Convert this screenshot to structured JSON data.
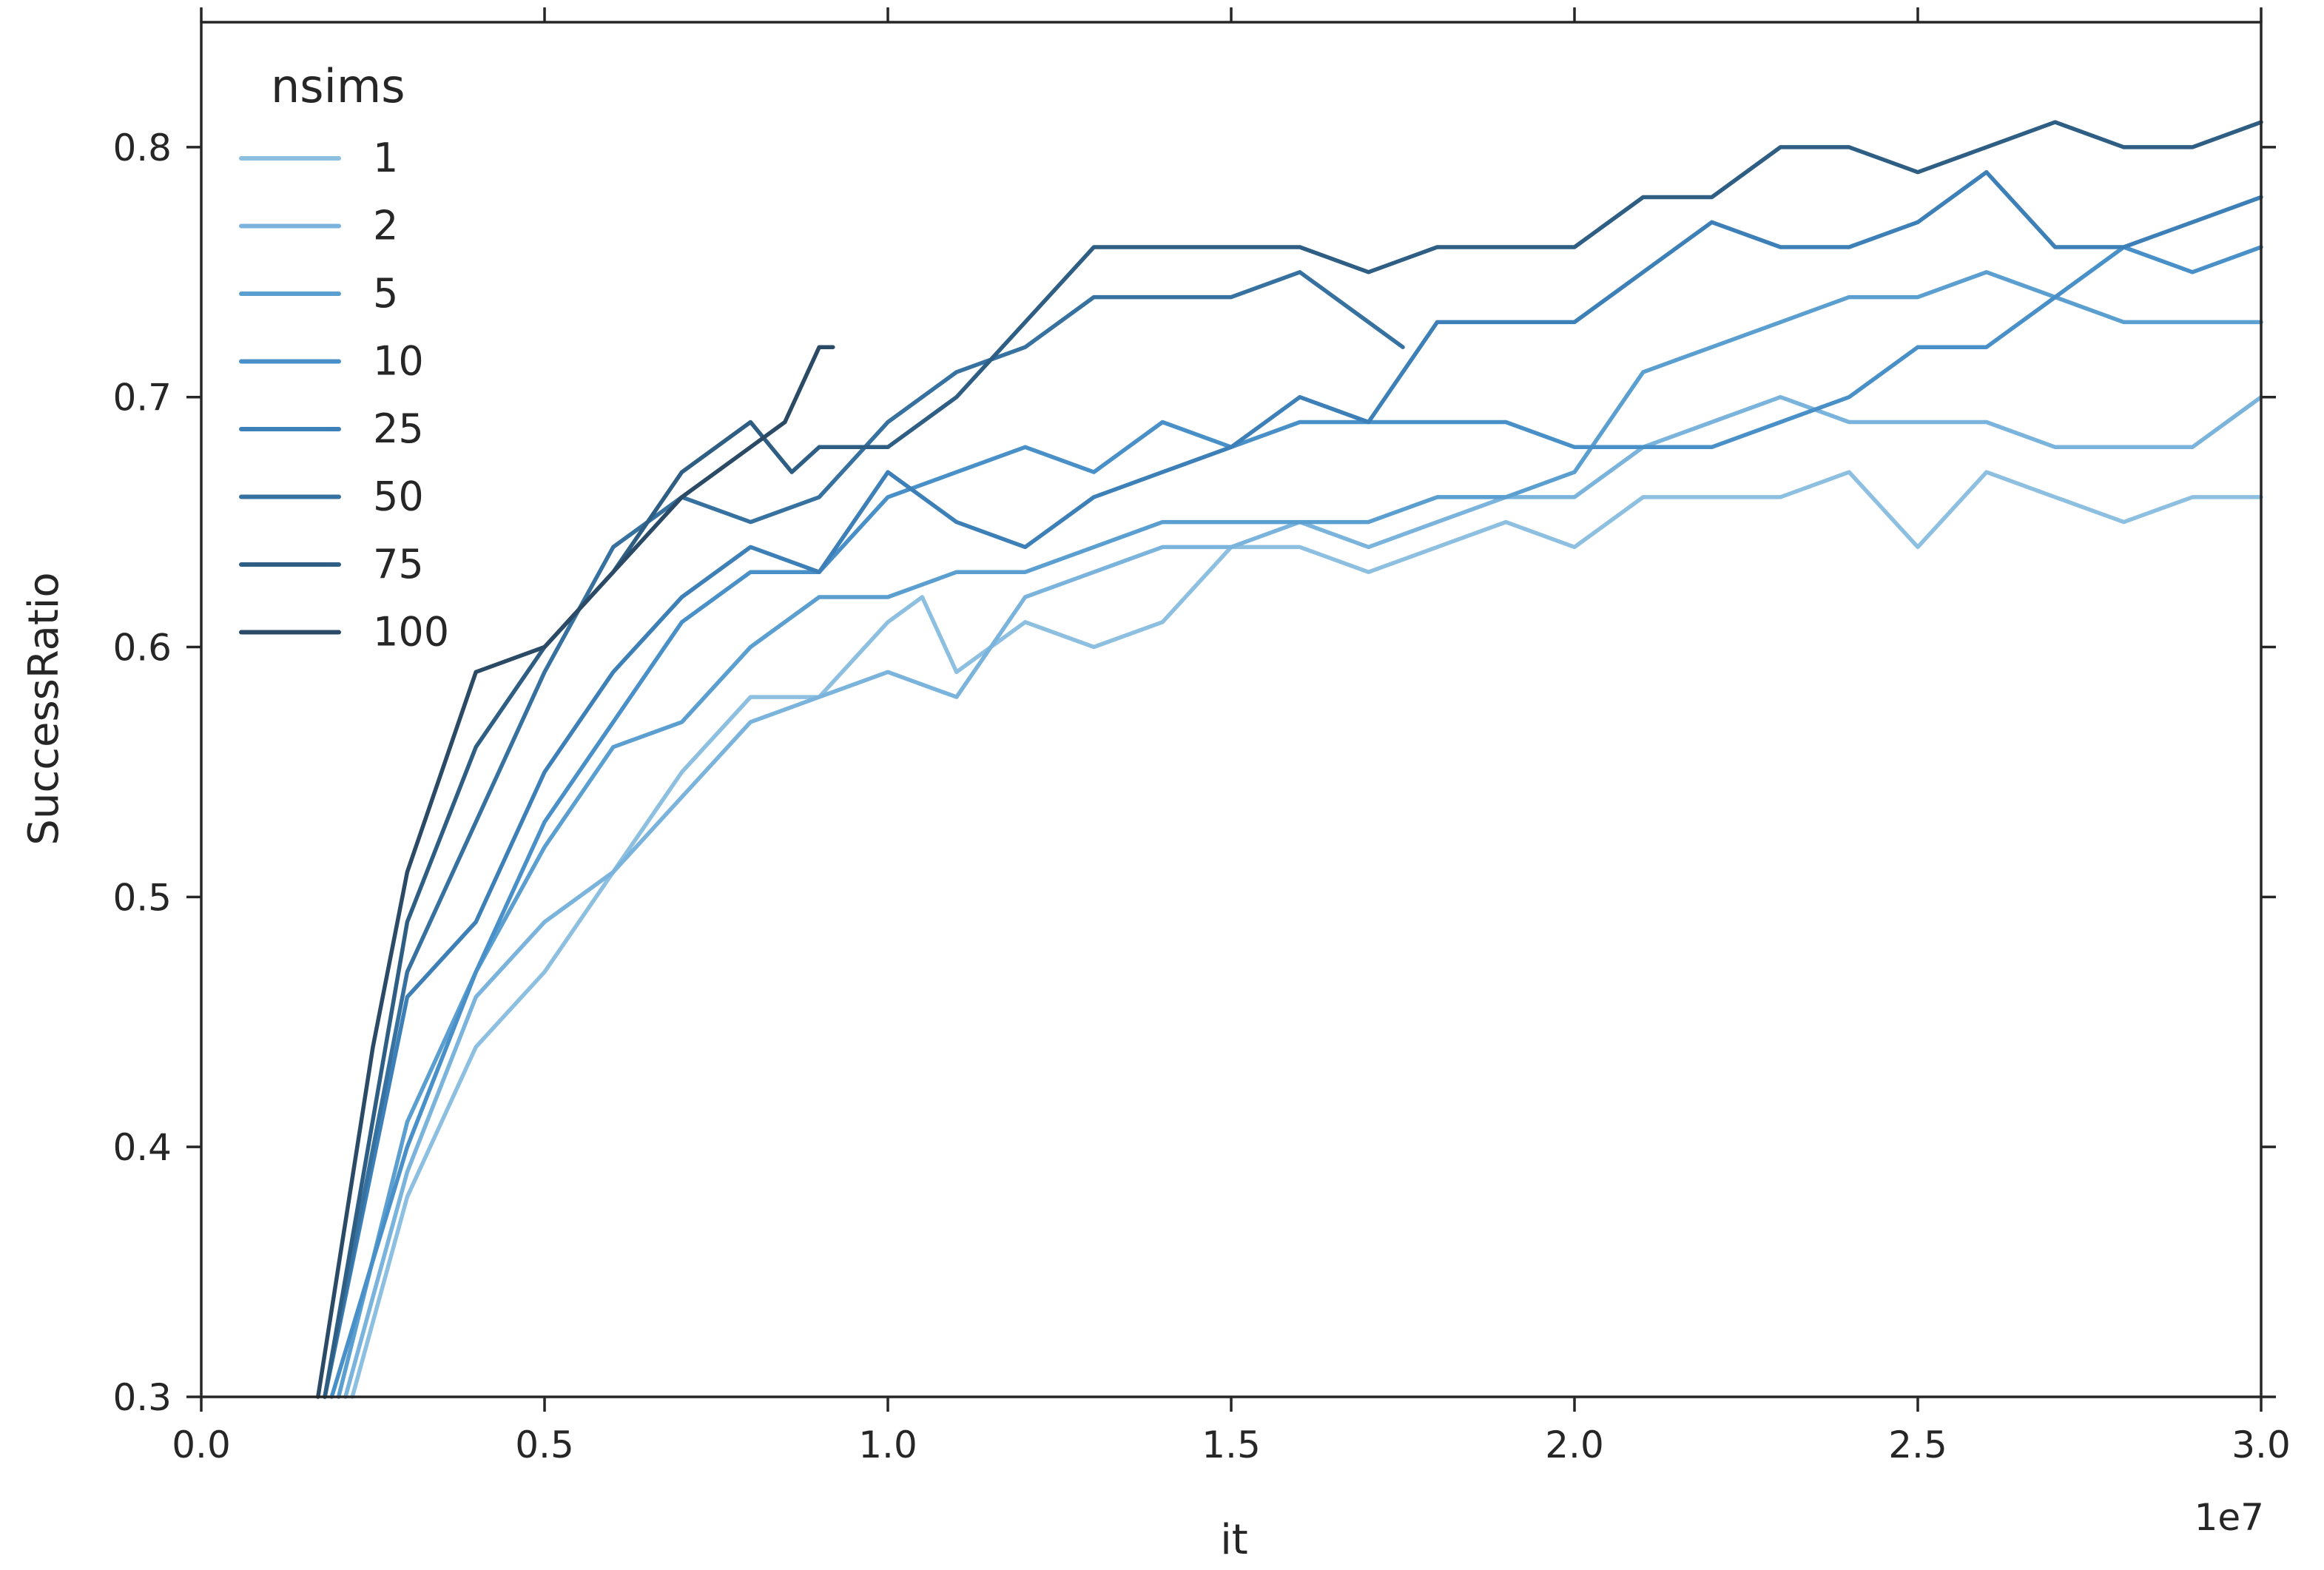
{
  "chart_data": {
    "type": "line",
    "xlabel": "it",
    "ylabel": "SuccessRatio",
    "x_offset_label": "1e7",
    "xlim": [
      0,
      30000000
    ],
    "ylim": [
      0.3,
      0.85
    ],
    "x_ticks": [
      0,
      5000000,
      10000000,
      15000000,
      20000000,
      25000000,
      30000000
    ],
    "x_tick_labels": [
      "0.0",
      "0.5",
      "1.0",
      "1.5",
      "2.0",
      "2.5",
      "3.0"
    ],
    "y_ticks": [
      0.3,
      0.4,
      0.5,
      0.6,
      0.7,
      0.8
    ],
    "y_tick_labels": [
      "0.3",
      "0.4",
      "0.5",
      "0.6",
      "0.7",
      "0.8"
    ],
    "grid": false,
    "legend": {
      "title": "nsims",
      "position": "top-left"
    },
    "series": [
      {
        "name": "1",
        "color": "#8dbfe0",
        "x": [
          2200000.0,
          3000000.0,
          4000000.0,
          5000000.0,
          6000000.0,
          7000000.0,
          8000000.0,
          9000000.0,
          10000000.0,
          10500000.0,
          11000000.0,
          12000000.0,
          13000000.0,
          14000000.0,
          15000000.0,
          16000000.0,
          17000000.0,
          18000000.0,
          19000000.0,
          20000000.0,
          21000000.0,
          22000000.0,
          23000000.0,
          24000000.0,
          25000000.0,
          26000000.0,
          27000000.0,
          28000000.0,
          29000000.0,
          30000000.0
        ],
        "y": [
          0.3,
          0.38,
          0.44,
          0.47,
          0.51,
          0.55,
          0.58,
          0.58,
          0.61,
          0.62,
          0.59,
          0.61,
          0.6,
          0.61,
          0.64,
          0.64,
          0.63,
          0.64,
          0.65,
          0.64,
          0.66,
          0.66,
          0.66,
          0.67,
          0.64,
          0.67,
          0.66,
          0.65,
          0.66,
          0.66
        ]
      },
      {
        "name": "2",
        "color": "#7ab3db",
        "x": [
          2100000.0,
          3000000.0,
          4000000.0,
          5000000.0,
          6000000.0,
          7000000.0,
          8000000.0,
          9000000.0,
          10000000.0,
          11000000.0,
          12000000.0,
          13000000.0,
          14000000.0,
          15000000.0,
          16000000.0,
          17000000.0,
          18000000.0,
          19000000.0,
          20000000.0,
          21000000.0,
          22000000.0,
          23000000.0,
          24000000.0,
          25000000.0,
          26000000.0,
          27000000.0,
          28000000.0,
          29000000.0,
          30000000.0
        ],
        "y": [
          0.3,
          0.39,
          0.46,
          0.49,
          0.51,
          0.54,
          0.57,
          0.58,
          0.59,
          0.58,
          0.62,
          0.63,
          0.64,
          0.64,
          0.65,
          0.64,
          0.65,
          0.66,
          0.66,
          0.68,
          0.69,
          0.7,
          0.69,
          0.69,
          0.69,
          0.68,
          0.68,
          0.68,
          0.7
        ]
      },
      {
        "name": "5",
        "color": "#5a9fd0",
        "x": [
          2000000.0,
          3000000.0,
          4000000.0,
          5000000.0,
          6000000.0,
          7000000.0,
          8000000.0,
          9000000.0,
          10000000.0,
          11000000.0,
          12000000.0,
          13000000.0,
          14000000.0,
          15000000.0,
          16000000.0,
          17000000.0,
          18000000.0,
          19000000.0,
          20000000.0,
          21000000.0,
          22000000.0,
          23000000.0,
          24000000.0,
          25000000.0,
          26000000.0,
          27000000.0,
          28000000.0,
          29000000.0,
          30000000.0
        ],
        "y": [
          0.3,
          0.41,
          0.47,
          0.52,
          0.56,
          0.57,
          0.6,
          0.62,
          0.62,
          0.63,
          0.63,
          0.64,
          0.65,
          0.65,
          0.65,
          0.65,
          0.66,
          0.66,
          0.67,
          0.71,
          0.72,
          0.73,
          0.74,
          0.74,
          0.75,
          0.74,
          0.73,
          0.73,
          0.73
        ]
      },
      {
        "name": "10",
        "color": "#4a90c8",
        "x": [
          1900000.0,
          3000000.0,
          4000000.0,
          5000000.0,
          6000000.0,
          7000000.0,
          8000000.0,
          9000000.0,
          10000000.0,
          11000000.0,
          12000000.0,
          13000000.0,
          14000000.0,
          15000000.0,
          16000000.0,
          17000000.0,
          18000000.0,
          19000000.0,
          20000000.0,
          21000000.0,
          22000000.0,
          23000000.0,
          24000000.0,
          25000000.0,
          26000000.0,
          27000000.0,
          28000000.0,
          29000000.0,
          30000000.0
        ],
        "y": [
          0.3,
          0.4,
          0.47,
          0.53,
          0.57,
          0.61,
          0.63,
          0.63,
          0.66,
          0.67,
          0.68,
          0.67,
          0.69,
          0.68,
          0.69,
          0.69,
          0.69,
          0.69,
          0.68,
          0.68,
          0.68,
          0.69,
          0.7,
          0.72,
          0.72,
          0.74,
          0.76,
          0.75,
          0.76
        ]
      },
      {
        "name": "25",
        "color": "#3d7fb7",
        "x": [
          1800000.0,
          3000000.0,
          4000000.0,
          5000000.0,
          6000000.0,
          7000000.0,
          8000000.0,
          9000000.0,
          10000000.0,
          11000000.0,
          12000000.0,
          13000000.0,
          14000000.0,
          15000000.0,
          16000000.0,
          17000000.0,
          18000000.0,
          19000000.0,
          20000000.0,
          21000000.0,
          22000000.0,
          23000000.0,
          24000000.0,
          25000000.0,
          26000000.0,
          27000000.0,
          28000000.0,
          29000000.0,
          30000000.0
        ],
        "y": [
          0.3,
          0.46,
          0.49,
          0.55,
          0.59,
          0.62,
          0.64,
          0.63,
          0.67,
          0.65,
          0.64,
          0.66,
          0.67,
          0.68,
          0.7,
          0.69,
          0.73,
          0.73,
          0.73,
          0.75,
          0.77,
          0.76,
          0.76,
          0.77,
          0.79,
          0.76,
          0.76,
          0.77,
          0.78
        ]
      },
      {
        "name": "50",
        "color": "#36719f",
        "x": [
          1800000.0,
          3000000.0,
          4000000.0,
          5000000.0,
          6000000.0,
          7000000.0,
          8000000.0,
          9000000.0,
          10000000.0,
          11000000.0,
          12000000.0,
          13000000.0,
          14000000.0,
          15000000.0,
          16000000.0,
          17000000.0,
          17500000.0
        ],
        "y": [
          0.3,
          0.47,
          0.53,
          0.59,
          0.64,
          0.66,
          0.65,
          0.66,
          0.69,
          0.71,
          0.72,
          0.74,
          0.74,
          0.74,
          0.75,
          0.73,
          0.72
        ]
      },
      {
        "name": "75",
        "color": "#2e5e84",
        "x": [
          1800000.0,
          3000000.0,
          4000000.0,
          5000000.0,
          6000000.0,
          7000000.0,
          8000000.0,
          8600000.0,
          9000000.0,
          10000000.0,
          11000000.0,
          12000000.0,
          13000000.0,
          14000000.0,
          15000000.0,
          16000000.0,
          17000000.0,
          18000000.0,
          19000000.0,
          20000000.0,
          21000000.0,
          22000000.0,
          23000000.0,
          24000000.0,
          25000000.0,
          26000000.0,
          27000000.0,
          28000000.0,
          29000000.0,
          30000000.0
        ],
        "y": [
          0.3,
          0.49,
          0.56,
          0.6,
          0.63,
          0.67,
          0.69,
          0.67,
          0.68,
          0.68,
          0.7,
          0.73,
          0.76,
          0.76,
          0.76,
          0.76,
          0.75,
          0.76,
          0.76,
          0.76,
          0.78,
          0.78,
          0.8,
          0.8,
          0.79,
          0.8,
          0.81,
          0.8,
          0.8,
          0.81
        ]
      },
      {
        "name": "100",
        "color": "#2b4a66",
        "x": [
          1700000.0,
          2500000.0,
          3000000.0,
          4000000.0,
          5000000.0,
          6000000.0,
          7000000.0,
          8000000.0,
          8500000.0,
          9000000.0,
          9200000.0
        ],
        "y": [
          0.3,
          0.44,
          0.51,
          0.59,
          0.6,
          0.63,
          0.66,
          0.68,
          0.69,
          0.72,
          0.72
        ]
      }
    ]
  }
}
